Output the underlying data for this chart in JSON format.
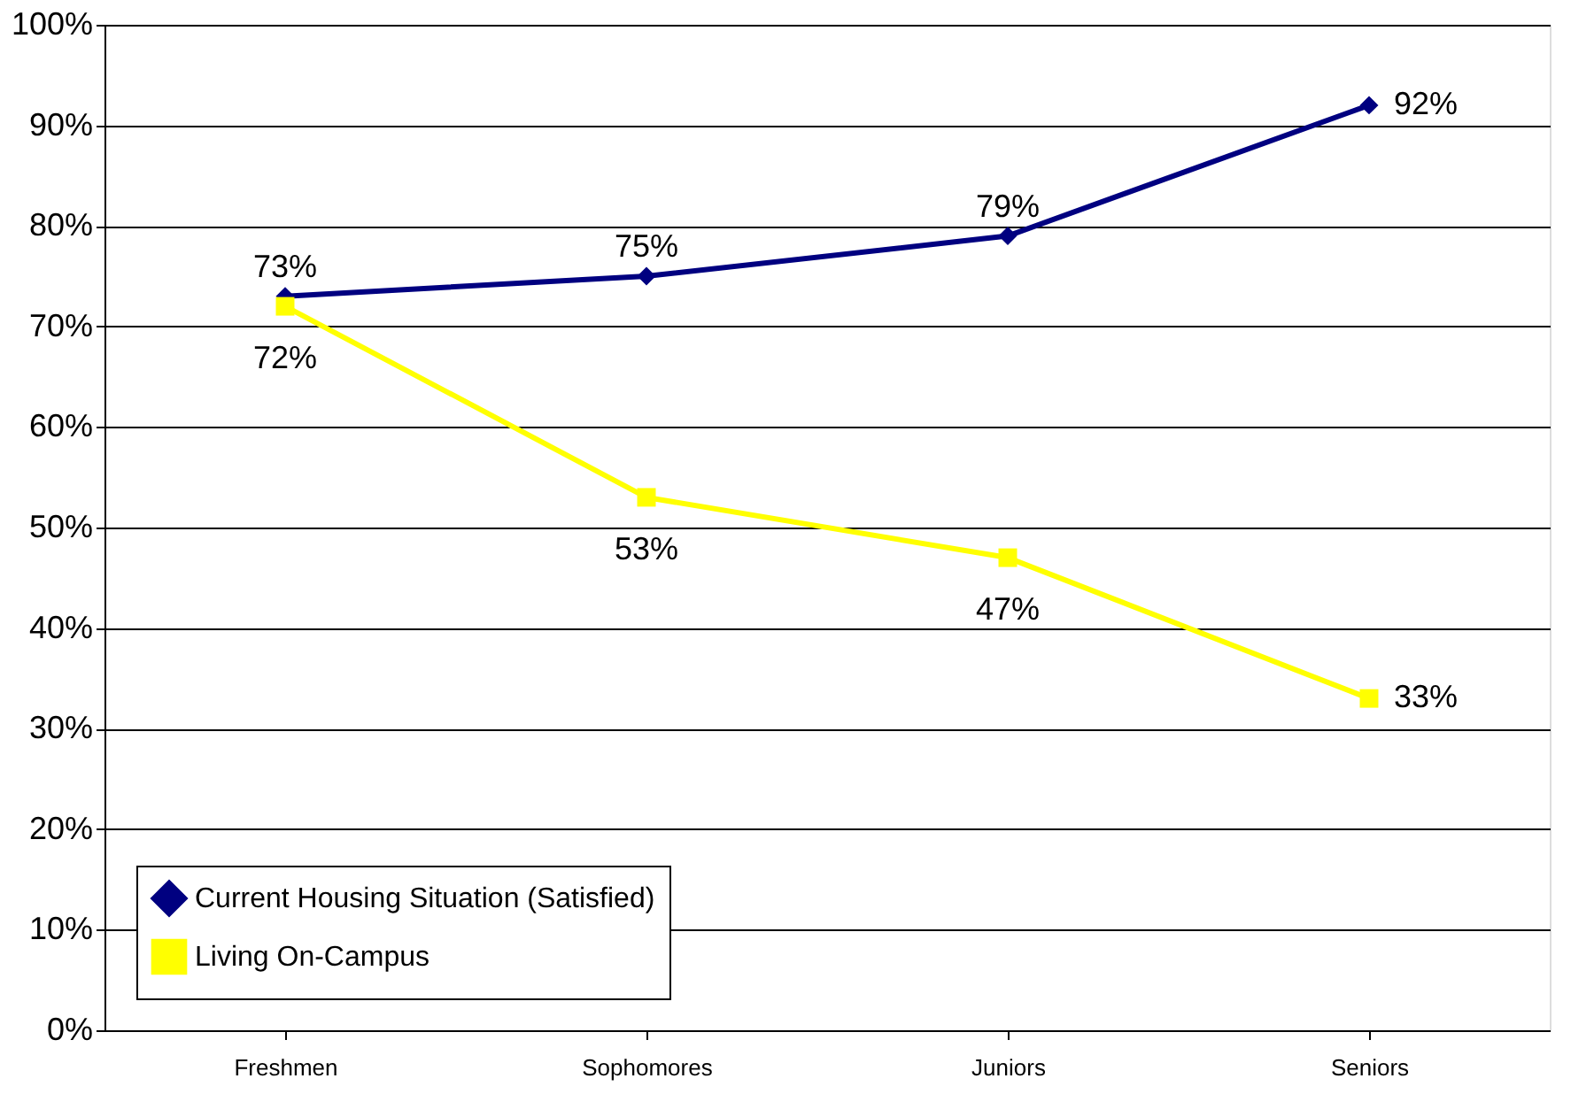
{
  "chart_data": {
    "type": "line",
    "categories": [
      "Freshmen",
      "Sophomores",
      "Juniors",
      "Seniors"
    ],
    "series": [
      {
        "name": "Current Housing Situation (Satisfied)",
        "color": "#000080",
        "marker": "diamond",
        "values": [
          73,
          75,
          79,
          92
        ],
        "value_labels": [
          "73%",
          "75%",
          "79%",
          "92%"
        ]
      },
      {
        "name": "Living On-Campus",
        "color": "#ffff00",
        "marker": "square",
        "values": [
          72,
          53,
          47,
          33
        ],
        "value_labels": [
          "72%",
          "53%",
          "47%",
          "33%"
        ]
      }
    ],
    "ylim": [
      0,
      100
    ],
    "yticks": [
      {
        "value": 0,
        "label": "0%"
      },
      {
        "value": 10,
        "label": "10%"
      },
      {
        "value": 20,
        "label": "20%"
      },
      {
        "value": 30,
        "label": "30%"
      },
      {
        "value": 40,
        "label": "40%"
      },
      {
        "value": 50,
        "label": "50%"
      },
      {
        "value": 60,
        "label": "60%"
      },
      {
        "value": 70,
        "label": "70%"
      },
      {
        "value": 80,
        "label": "80%"
      },
      {
        "value": 90,
        "label": "90%"
      },
      {
        "value": 100,
        "label": "100%"
      }
    ],
    "grid": "y",
    "legend": "bottom left",
    "line_style": "solid"
  }
}
